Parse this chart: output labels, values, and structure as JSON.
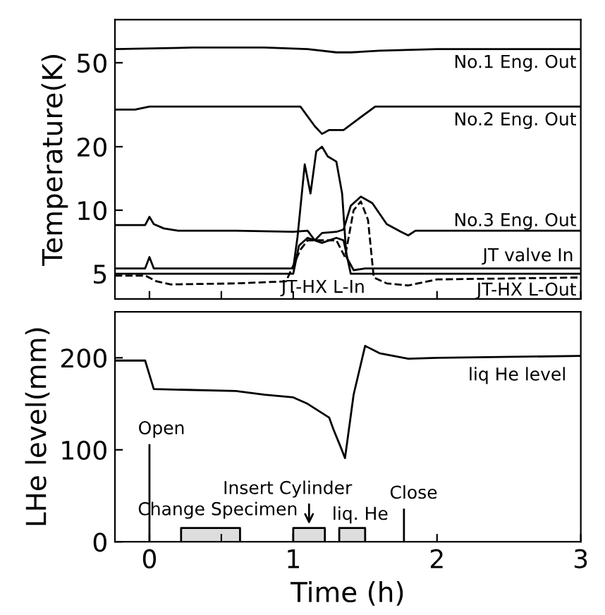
{
  "chart_data": [
    {
      "type": "line",
      "ylabel": "Temperature(K)",
      "log": true,
      "ylim": [
        3.8,
        80
      ],
      "yticks": [
        5,
        10,
        20,
        50
      ],
      "xlim": [
        -0.24,
        3
      ],
      "xticks": [
        0,
        {
          "value": 0.5,
          "label": null
        },
        1,
        2,
        3
      ],
      "tick_labels": "y",
      "grid": false,
      "legend": false,
      "marker": "none",
      "series": [
        {
          "name": "No.1 Eng. Out",
          "color": "#000000",
          "line_style": "solid",
          "x": [
            -0.24,
            0.3,
            0.8,
            1.1,
            1.3,
            1.4,
            1.6,
            2.0,
            3.0
          ],
          "values": [
            58,
            59,
            59,
            58,
            56,
            56,
            57,
            58,
            58
          ]
        },
        {
          "name": "No.2 Eng. Out",
          "color": "#000000",
          "line_style": "solid",
          "x": [
            -0.24,
            -0.1,
            0.0,
            1.05,
            1.15,
            1.2,
            1.25,
            1.35,
            1.45,
            1.57,
            2.0,
            3.0
          ],
          "values": [
            30,
            30,
            31,
            31,
            25,
            23,
            24,
            24,
            27,
            31,
            31,
            31
          ]
        },
        {
          "name": "No.3 Eng. Out",
          "color": "#000000",
          "line_style": "solid",
          "x": [
            -0.24,
            -0.03,
            0.0,
            0.03,
            0.1,
            0.2,
            0.6,
            1.0,
            1.1,
            1.15,
            1.2,
            1.3,
            1.35,
            1.4,
            1.47,
            1.55,
            1.65,
            1.75,
            1.8,
            1.85,
            2.0,
            3.0
          ],
          "values": [
            8.5,
            8.5,
            9.3,
            8.6,
            8.2,
            8.0,
            8.0,
            7.9,
            8.0,
            7.2,
            7.8,
            7.9,
            8.1,
            10.5,
            11.6,
            10.8,
            8.6,
            7.9,
            7.6,
            8.0,
            8.0,
            8.0
          ]
        },
        {
          "name": "JT valve In",
          "color": "#000000",
          "line_style": "solid",
          "x": [
            -0.24,
            -0.03,
            0.0,
            0.03,
            0.3,
            1.0,
            1.03,
            1.08,
            1.12,
            1.16,
            1.2,
            1.24,
            1.3,
            1.34,
            1.37,
            1.42,
            1.5,
            2.0,
            3.0
          ],
          "values": [
            5.3,
            5.3,
            6.0,
            5.3,
            5.3,
            5.3,
            7.5,
            16.5,
            12,
            19,
            20,
            18,
            17,
            12,
            6,
            5.2,
            5.3,
            5.3,
            5.3
          ]
        },
        {
          "name": "JT-HX L-In",
          "color": "#000000",
          "line_style": "solid",
          "x": [
            -0.24,
            0.5,
            1.0,
            1.04,
            1.1,
            1.2,
            1.3,
            1.35,
            1.4,
            2.0,
            3.0
          ],
          "values": [
            5.0,
            5.0,
            5.0,
            6.8,
            7.4,
            7.0,
            7.4,
            7.2,
            5.0,
            5.0,
            5.0
          ]
        },
        {
          "name": "JT-HX L-Out",
          "color": "#000000",
          "line_style": "dashed",
          "x": [
            -0.24,
            -0.03,
            0.05,
            0.15,
            0.6,
            0.95,
            1.05,
            1.1,
            1.3,
            1.36,
            1.42,
            1.47,
            1.52,
            1.56,
            1.65,
            1.8,
            2.0,
            3.0
          ],
          "values": [
            4.9,
            4.9,
            4.6,
            4.45,
            4.5,
            4.6,
            6.5,
            7.2,
            7.2,
            6.0,
            10,
            11,
            9,
            4.8,
            4.5,
            4.4,
            4.7,
            4.8
          ]
        }
      ]
    },
    {
      "type": "line",
      "ylabel": "LHe level(mm)",
      "xlabel": "Time (h)",
      "ylim": [
        0,
        250
      ],
      "yticks": [
        0,
        100,
        200
      ],
      "xlim": [
        -0.24,
        3
      ],
      "xticks": [
        0,
        {
          "value": 0.5,
          "label": null
        },
        1,
        2,
        3
      ],
      "grid": false,
      "legend": false,
      "marker": "none",
      "series": [
        {
          "name": "liq He level",
          "color": "#000000",
          "line_style": "solid",
          "x": [
            -0.24,
            -0.03,
            0.03,
            0.6,
            0.8,
            1.0,
            1.1,
            1.2,
            1.25,
            1.28,
            1.33,
            1.36,
            1.42,
            1.5,
            1.6,
            1.8,
            2.0,
            3.0
          ],
          "values": [
            197,
            197,
            166,
            164,
            160,
            157,
            150,
            140,
            135,
            122,
            103,
            91,
            160,
            213,
            205,
            199,
            200,
            202
          ]
        }
      ],
      "ref_lines": [
        {
          "axis": "x",
          "value": 0,
          "label": "Open"
        },
        {
          "axis": "x",
          "value": 1.77,
          "label": "Close"
        }
      ],
      "bands": [
        {
          "axis": "x",
          "from": 0.22,
          "to": 0.63,
          "label": "Change Specimen"
        },
        {
          "axis": "x",
          "from": 1.0,
          "to": 1.22,
          "label": "Insert Cylinder"
        },
        {
          "axis": "x",
          "from": 1.32,
          "to": 1.5,
          "label": "liq. He"
        }
      ]
    }
  ]
}
